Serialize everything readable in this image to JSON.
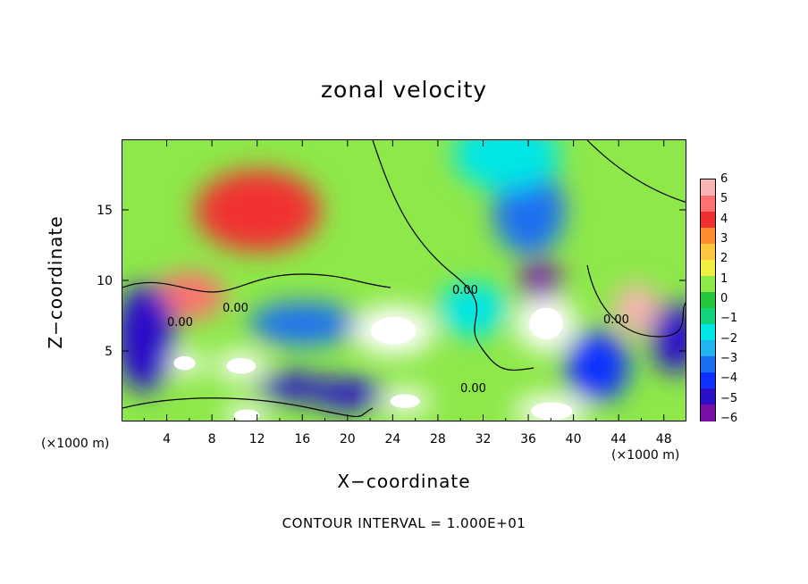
{
  "chart_data": {
    "type": "heatmap",
    "title": "zonal velocity",
    "xlabel": "X−coordinate",
    "ylabel": "Z−coordinate",
    "x_unit_left": "(×1000 m)",
    "x_unit_right": "(×1000 m)",
    "xlim": [
      0,
      50
    ],
    "ylim": [
      0,
      20
    ],
    "x_ticks": [
      4,
      8,
      12,
      16,
      20,
      24,
      28,
      32,
      36,
      40,
      44,
      48
    ],
    "y_ticks": [
      5,
      10,
      15
    ],
    "colorbar": {
      "range": [
        -6,
        6
      ],
      "ticks": [
        6,
        5,
        4,
        3,
        2,
        1,
        0,
        -1,
        -2,
        -3,
        -4,
        -5,
        -6
      ],
      "tick_labels": [
        "6",
        "5",
        "4",
        "3",
        "2",
        "1",
        "0",
        "−1",
        "−2",
        "−3",
        "−4",
        "−5",
        "−6"
      ],
      "colors": [
        "#7a0fa8",
        "#2a10c8",
        "#1030ff",
        "#1a70f0",
        "#22b4f0",
        "#00e6e6",
        "#12d27e",
        "#22c83a",
        "#8ee84a",
        "#f0f040",
        "#ffc640",
        "#ff8a30",
        "#f03030",
        "#ff7070",
        "#f8b4b4"
      ]
    },
    "contour_labels": [
      "0.00",
      "0.00",
      "0.00",
      "0.00",
      "0.00"
    ],
    "footer": "CONTOUR INTERVAL = 1.000E+01",
    "features": [
      {
        "x": 12,
        "z": 15,
        "value": 4
      },
      {
        "x": 6,
        "z": 9,
        "value": 5
      },
      {
        "x": 24,
        "z": 6.5,
        "value": 7
      },
      {
        "x": 37.5,
        "z": 7,
        "value": 8
      },
      {
        "x": 45.5,
        "z": 8,
        "value": 6
      },
      {
        "x": 10.5,
        "z": 4,
        "value": 7
      },
      {
        "x": 5.5,
        "z": 4.2,
        "value": 7
      },
      {
        "x": 11,
        "z": 0.5,
        "value": 7
      },
      {
        "x": 25,
        "z": 1.5,
        "value": 7
      },
      {
        "x": 38,
        "z": 0.8,
        "value": 8
      },
      {
        "x": 37,
        "z": 10,
        "value": -6
      },
      {
        "x": 36,
        "z": 15,
        "value": -3
      },
      {
        "x": 34,
        "z": 19,
        "value": -2
      },
      {
        "x": 2,
        "z": 6,
        "value": -5
      },
      {
        "x": 16,
        "z": 7,
        "value": -3
      },
      {
        "x": 20,
        "z": 2,
        "value": -5
      },
      {
        "x": 49,
        "z": 6,
        "value": -5
      },
      {
        "x": 42,
        "z": 4,
        "value": -4
      },
      {
        "x": 31,
        "z": 8,
        "value": -2
      },
      {
        "x": 15,
        "z": 2.5,
        "value": -5
      }
    ]
  }
}
